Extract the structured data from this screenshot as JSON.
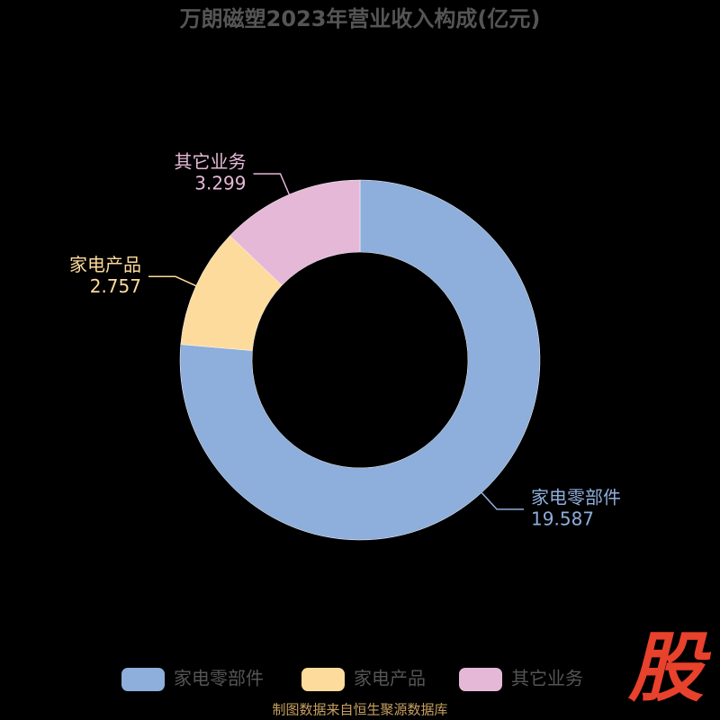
{
  "chart_data": {
    "type": "donut",
    "title": "万朗磁塑2023年营业收入构成(亿元)",
    "categories": [
      "家电零部件",
      "家电产品",
      "其它业务"
    ],
    "values": [
      19.587,
      2.757,
      3.299
    ],
    "colors": [
      "#8eaedb",
      "#fddb9c",
      "#e6b8d8"
    ],
    "legend": "bottom",
    "source": "制图数据来自恒生聚源数据库",
    "logo": "股"
  }
}
